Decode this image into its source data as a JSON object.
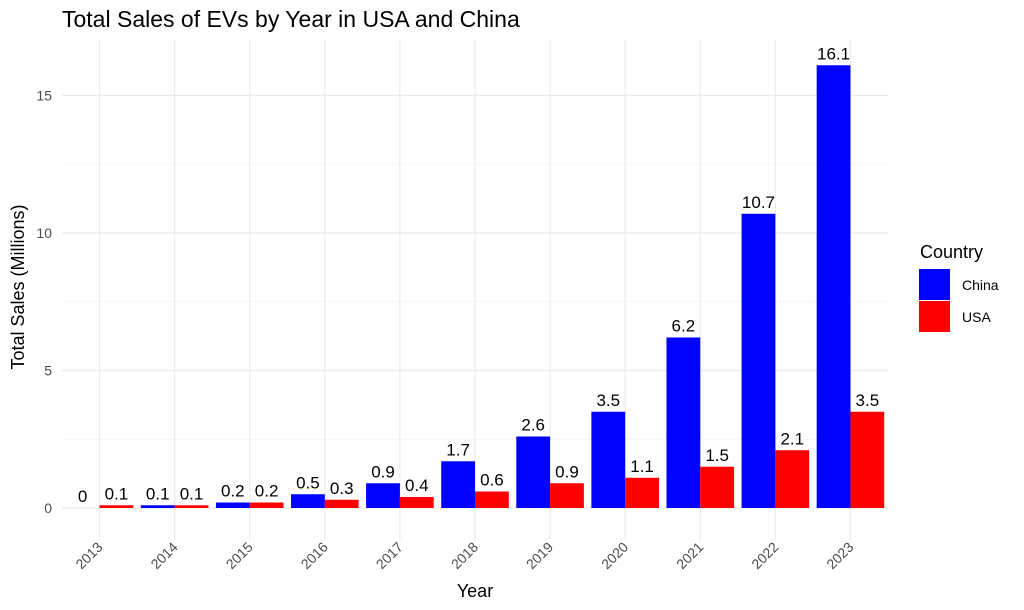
{
  "chart_data": {
    "type": "bar",
    "title": "Total Sales of EVs by Year in USA and China",
    "xlabel": "Year",
    "ylabel": "Total Sales (Millions)",
    "categories": [
      "2013",
      "2014",
      "2015",
      "2016",
      "2017",
      "2018",
      "2019",
      "2020",
      "2021",
      "2022",
      "2023"
    ],
    "series": [
      {
        "name": "China",
        "color": "#0000ff",
        "values": [
          0,
          0.1,
          0.2,
          0.5,
          0.9,
          1.7,
          2.6,
          3.5,
          6.2,
          10.7,
          16.1
        ]
      },
      {
        "name": "USA",
        "color": "#ff0000",
        "values": [
          0.1,
          0.1,
          0.2,
          0.3,
          0.4,
          0.6,
          0.9,
          1.1,
          1.5,
          2.1,
          3.5
        ]
      }
    ],
    "data_labels": [
      [
        "0",
        "0.1",
        "0.2",
        "0.5",
        "0.9",
        "1.7",
        "2.6",
        "3.5",
        "6.2",
        "10.7",
        "16.1"
      ],
      [
        "0.1",
        "0.1",
        "0.2",
        "0.3",
        "0.4",
        "0.6",
        "0.9",
        "1.1",
        "1.5",
        "2.1",
        "3.5"
      ]
    ],
    "yticks": [
      0,
      5,
      10,
      15
    ],
    "ytick_labels": [
      "0",
      "5",
      "10",
      "15"
    ],
    "ylim": [
      0,
      16.8
    ],
    "grid": true,
    "legend": {
      "title": "Country",
      "position": "right"
    }
  }
}
